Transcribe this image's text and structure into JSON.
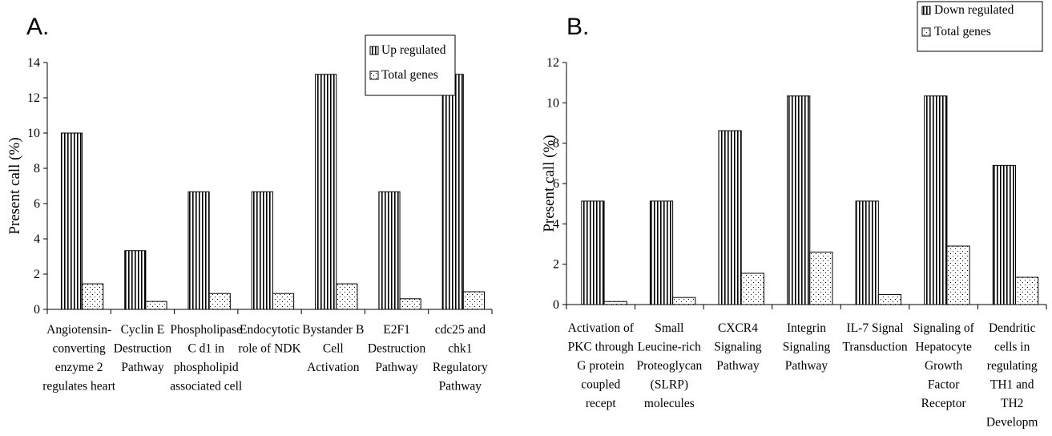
{
  "chart_data": [
    {
      "type": "bar",
      "panel_label": "A.",
      "ylabel": "Present call (%)",
      "ylim": [
        0,
        14
      ],
      "yticks": [
        0,
        2,
        4,
        6,
        8,
        10,
        12,
        14
      ],
      "legend_position": "top-right",
      "categories": [
        [
          "Angiotensin-",
          "converting",
          "enzyme 2",
          "regulates heart"
        ],
        [
          "Cyclin E",
          "Destruction",
          "Pathway"
        ],
        [
          "Phospholipase",
          "C d1 in",
          "phospholipid",
          "associated cell"
        ],
        [
          "Endocytotic",
          "role of NDK"
        ],
        [
          "Bystander B",
          "Cell",
          "Activation"
        ],
        [
          "E2F1",
          "Destruction",
          "Pathway"
        ],
        [
          "cdc25 and",
          "chk1",
          "Regulatory",
          "Pathway"
        ]
      ],
      "series": [
        {
          "name": "Up regulated",
          "pattern": "vertical-lines",
          "values": [
            10,
            3.33,
            6.67,
            6.67,
            13.33,
            6.67,
            13.33
          ]
        },
        {
          "name": "Total genes",
          "pattern": "dots",
          "values": [
            1.45,
            0.45,
            0.9,
            0.9,
            1.45,
            0.6,
            1.0
          ]
        }
      ]
    },
    {
      "type": "bar",
      "panel_label": "B.",
      "ylabel": "Present call (%)",
      "ylim": [
        0,
        12
      ],
      "yticks": [
        0,
        2,
        4,
        6,
        8,
        10,
        12
      ],
      "legend_position": "top-right",
      "categories": [
        [
          "Activation of",
          "PKC through",
          "G protein",
          "coupled",
          "recept"
        ],
        [
          "Small",
          "Leucine-rich",
          "Proteoglycan",
          "(SLRP)",
          "molecules"
        ],
        [
          "CXCR4",
          "Signaling",
          "Pathway"
        ],
        [
          "Integrin",
          "Signaling",
          "Pathway"
        ],
        [
          "IL-7 Signal",
          "Transduction"
        ],
        [
          "Signaling of",
          "Hepatocyte",
          "Growth",
          "Factor",
          "Receptor"
        ],
        [
          "Dendritic",
          "cells in",
          "regulating",
          "TH1 and",
          "TH2",
          "Developm"
        ]
      ],
      "series": [
        {
          "name": "Down regulated",
          "pattern": "vertical-lines",
          "values": [
            5.13,
            5.13,
            8.62,
            10.34,
            5.13,
            10.34,
            6.9
          ]
        },
        {
          "name": "Total genes",
          "pattern": "dots",
          "values": [
            0.15,
            0.35,
            1.55,
            2.6,
            0.5,
            2.9,
            1.35
          ]
        }
      ]
    }
  ]
}
